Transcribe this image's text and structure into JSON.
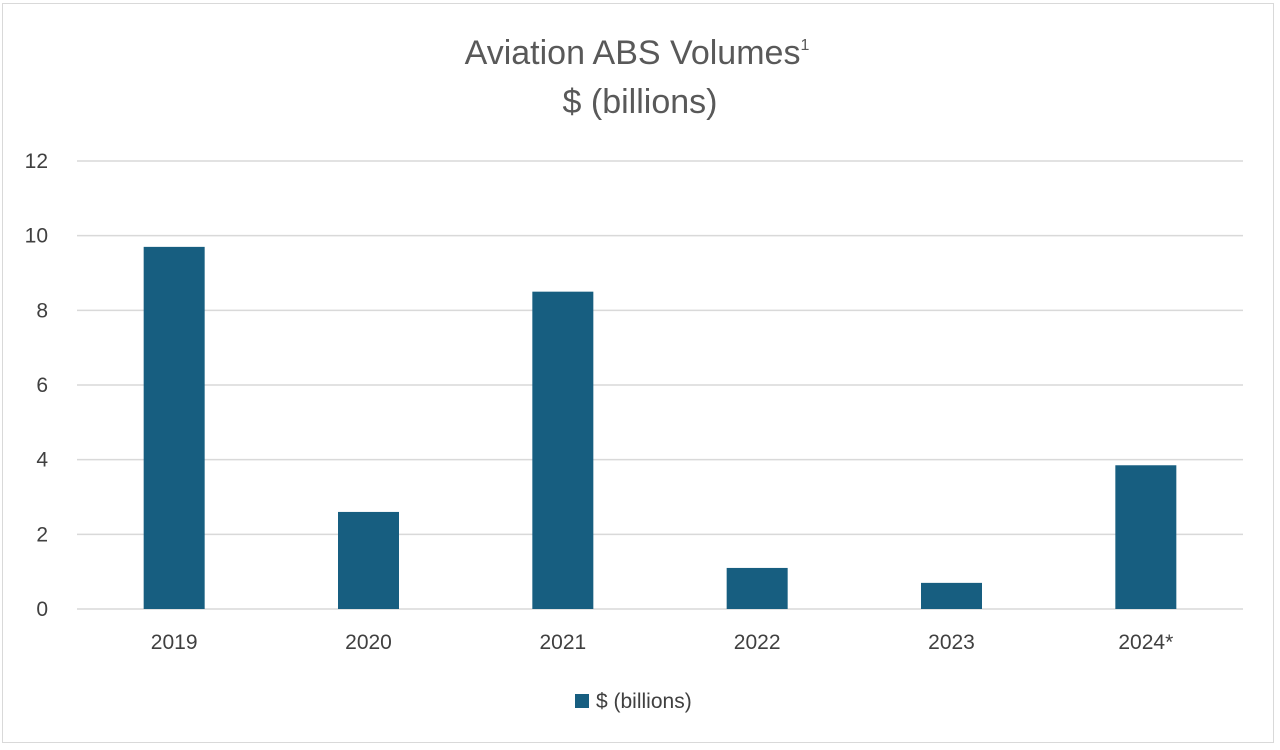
{
  "chart_data": {
    "type": "bar",
    "title": "Aviation ABS Volumes",
    "title_superscript": "1",
    "subtitle": "$ (billions)",
    "categories": [
      "2019",
      "2020",
      "2021",
      "2022",
      "2023",
      "2024*"
    ],
    "series": [
      {
        "name": "$ (billions)",
        "values": [
          9.7,
          2.6,
          8.5,
          1.1,
          0.7,
          3.85
        ],
        "color": "#175e80"
      }
    ],
    "ylim": [
      0,
      12
    ],
    "yticks": [
      "0",
      "2",
      "4",
      "6",
      "8",
      "10",
      "12"
    ],
    "ytick_values": [
      0,
      2,
      4,
      6,
      8,
      10,
      12
    ],
    "grid": true,
    "gridline_color": "#d9d9d9",
    "legend_position": "bottom"
  }
}
